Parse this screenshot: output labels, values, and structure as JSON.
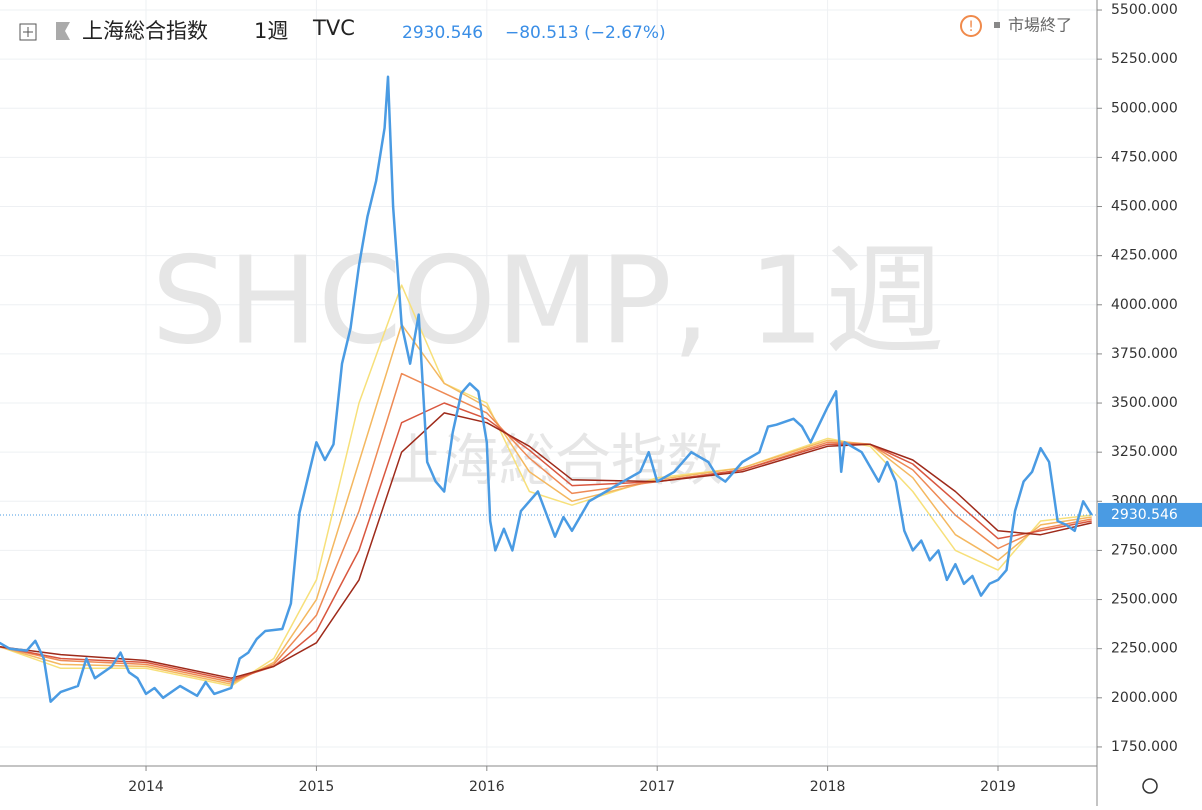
{
  "chart_data": {
    "type": "line",
    "symbol": "上海総合指数",
    "interval": "1週",
    "exchange": "TVC",
    "last_value": 2930.546,
    "change": "−80.513 (−2.67%)",
    "market_status": "市場終了",
    "watermark": "SHCOMP, 1週",
    "watermark_sub": "上海総合指数",
    "xlim": [
      2013.143,
      2019.581
    ],
    "xticks": [
      2014,
      2015,
      2016,
      2017,
      2018,
      2019
    ],
    "ylim": [
      1653,
      5551
    ],
    "yticks": [
      {
        "value": 1750,
        "label": "1750.000"
      },
      {
        "value": 2000,
        "label": "2000.000"
      },
      {
        "value": 2250,
        "label": "2250.000"
      },
      {
        "value": 2500,
        "label": "2500.000"
      },
      {
        "value": 2750,
        "label": "2750.000"
      },
      {
        "value": 3000,
        "label": "3000.000"
      },
      {
        "value": 3250,
        "label": "3250.000"
      },
      {
        "value": 3500,
        "label": "3500.000"
      },
      {
        "value": 3750,
        "label": "3750.000"
      },
      {
        "value": 4000,
        "label": "4000.000"
      },
      {
        "value": 4250,
        "label": "4250.000"
      },
      {
        "value": 4500,
        "label": "4500.000"
      },
      {
        "value": 4750,
        "label": "4750.000"
      },
      {
        "value": 5000,
        "label": "5000.000"
      },
      {
        "value": 5250,
        "label": "5250.000"
      },
      {
        "value": 5500,
        "label": "5500.000"
      }
    ],
    "grid": true,
    "series": [
      {
        "color": "#f7e07a",
        "x": [
          2013.14,
          2013.5,
          2014.0,
          2014.5,
          2014.75,
          2015.0,
          2015.25,
          2015.5,
          2015.75,
          2016.0,
          2016.25,
          2016.5,
          2017.0,
          2017.5,
          2018.0,
          2018.25,
          2018.5,
          2018.75,
          2019.0,
          2019.25,
          2019.55
        ],
        "values": [
          2260,
          2150,
          2150,
          2060,
          2200,
          2600,
          3500,
          4100,
          3600,
          3500,
          3050,
          2980,
          3120,
          3170,
          3320,
          3280,
          3050,
          2750,
          2650,
          2900,
          2930
        ]
      },
      {
        "color": "#f4b860",
        "x": [
          2013.14,
          2013.5,
          2014.0,
          2014.5,
          2014.75,
          2015.0,
          2015.25,
          2015.5,
          2015.75,
          2016.0,
          2016.25,
          2016.5,
          2017.0,
          2017.5,
          2018.0,
          2018.25,
          2018.5,
          2018.75,
          2019.0,
          2019.25,
          2019.55
        ],
        "values": [
          2260,
          2170,
          2160,
          2070,
          2180,
          2500,
          3200,
          3900,
          3600,
          3480,
          3150,
          3000,
          3110,
          3170,
          3310,
          3290,
          3120,
          2830,
          2700,
          2880,
          2920
        ]
      },
      {
        "color": "#ee8a55",
        "x": [
          2013.14,
          2013.5,
          2014.0,
          2014.5,
          2014.75,
          2015.0,
          2015.25,
          2015.5,
          2015.75,
          2016.0,
          2016.25,
          2016.5,
          2017.0,
          2017.5,
          2018.0,
          2018.25,
          2018.5,
          2018.75,
          2019.0,
          2019.25,
          2019.55
        ],
        "values": [
          2260,
          2190,
          2170,
          2080,
          2170,
          2420,
          2950,
          3650,
          3550,
          3450,
          3220,
          3040,
          3100,
          3160,
          3300,
          3290,
          3160,
          2930,
          2760,
          2860,
          2910
        ]
      },
      {
        "color": "#d9573f",
        "x": [
          2013.14,
          2013.5,
          2014.0,
          2014.5,
          2014.75,
          2015.0,
          2015.25,
          2015.5,
          2015.75,
          2016.0,
          2016.25,
          2016.5,
          2017.0,
          2017.5,
          2018.0,
          2018.25,
          2018.5,
          2018.75,
          2019.0,
          2019.25,
          2019.55
        ],
        "values": [
          2260,
          2200,
          2180,
          2090,
          2160,
          2340,
          2750,
          3400,
          3500,
          3420,
          3260,
          3080,
          3100,
          3160,
          3290,
          3290,
          3190,
          3000,
          2810,
          2850,
          2900
        ]
      },
      {
        "color": "#9e2a1a",
        "x": [
          2013.14,
          2013.5,
          2014.0,
          2014.5,
          2014.75,
          2015.0,
          2015.25,
          2015.5,
          2015.75,
          2016.0,
          2016.25,
          2016.5,
          2017.0,
          2017.5,
          2018.0,
          2018.25,
          2018.5,
          2018.75,
          2019.0,
          2019.25,
          2019.55
        ],
        "values": [
          2260,
          2220,
          2190,
          2100,
          2160,
          2280,
          2600,
          3250,
          3450,
          3400,
          3280,
          3110,
          3100,
          3150,
          3280,
          3290,
          3210,
          3050,
          2850,
          2830,
          2890
        ]
      },
      {
        "color": "#4a9be3",
        "x": [
          2013.14,
          2013.2,
          2013.3,
          2013.35,
          2013.4,
          2013.44,
          2013.5,
          2013.6,
          2013.65,
          2013.7,
          2013.8,
          2013.85,
          2013.9,
          2013.95,
          2014.0,
          2014.05,
          2014.1,
          2014.2,
          2014.3,
          2014.35,
          2014.4,
          2014.5,
          2014.55,
          2014.6,
          2014.65,
          2014.7,
          2014.8,
          2014.85,
          2014.9,
          2014.95,
          2015.0,
          2015.05,
          2015.1,
          2015.15,
          2015.2,
          2015.25,
          2015.3,
          2015.35,
          2015.4,
          2015.42,
          2015.45,
          2015.5,
          2015.55,
          2015.6,
          2015.65,
          2015.7,
          2015.75,
          2015.8,
          2015.85,
          2015.9,
          2015.95,
          2016.0,
          2016.02,
          2016.05,
          2016.1,
          2016.15,
          2016.2,
          2016.3,
          2016.4,
          2016.45,
          2016.5,
          2016.6,
          2016.7,
          2016.8,
          2016.9,
          2016.95,
          2017.0,
          2017.1,
          2017.2,
          2017.3,
          2017.35,
          2017.4,
          2017.5,
          2017.6,
          2017.65,
          2017.7,
          2017.8,
          2017.85,
          2017.9,
          2018.0,
          2018.05,
          2018.08,
          2018.1,
          2018.2,
          2018.3,
          2018.35,
          2018.4,
          2018.45,
          2018.5,
          2018.55,
          2018.6,
          2018.65,
          2018.7,
          2018.75,
          2018.8,
          2018.85,
          2018.9,
          2018.95,
          2019.0,
          2019.05,
          2019.1,
          2019.15,
          2019.2,
          2019.25,
          2019.3,
          2019.35,
          2019.4,
          2019.45,
          2019.5,
          2019.55
        ],
        "values": [
          2280,
          2250,
          2240,
          2290,
          2200,
          1980,
          2030,
          2060,
          2200,
          2100,
          2160,
          2230,
          2130,
          2100,
          2020,
          2050,
          2000,
          2060,
          2010,
          2080,
          2020,
          2050,
          2200,
          2230,
          2300,
          2340,
          2350,
          2480,
          2940,
          3120,
          3300,
          3210,
          3290,
          3700,
          3880,
          4200,
          4450,
          4630,
          4900,
          5160,
          4500,
          3900,
          3700,
          3950,
          3200,
          3100,
          3050,
          3350,
          3550,
          3600,
          3560,
          3300,
          2900,
          2750,
          2860,
          2750,
          2950,
          3050,
          2820,
          2920,
          2850,
          3000,
          3050,
          3100,
          3150,
          3250,
          3100,
          3150,
          3250,
          3200,
          3130,
          3100,
          3200,
          3250,
          3380,
          3390,
          3420,
          3380,
          3300,
          3480,
          3560,
          3150,
          3300,
          3250,
          3100,
          3200,
          3100,
          2850,
          2750,
          2800,
          2700,
          2750,
          2600,
          2680,
          2580,
          2620,
          2520,
          2580,
          2600,
          2650,
          2950,
          3100,
          3150,
          3270,
          3200,
          2900,
          2880,
          2850,
          3000,
          2930.546
        ]
      }
    ]
  }
}
